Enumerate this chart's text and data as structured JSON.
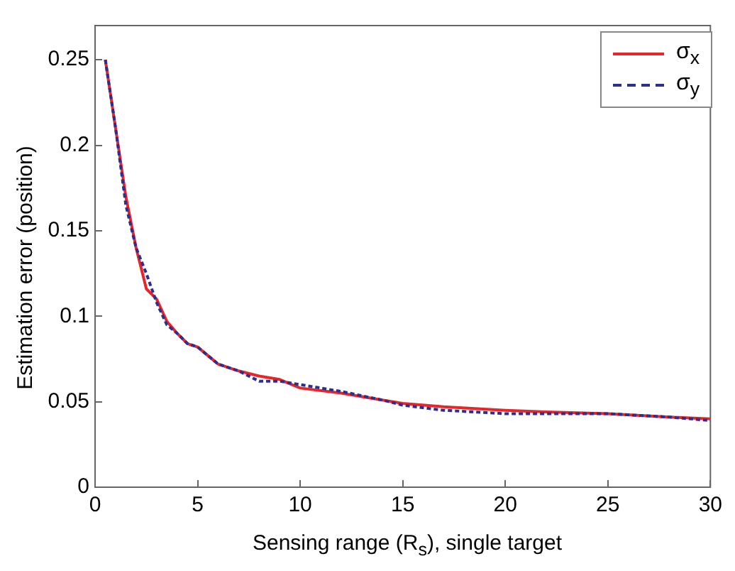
{
  "chart_data": {
    "type": "line",
    "xlabel": "Sensing range (R$_{s}$), single target",
    "ylabel": "Estimation error (position)",
    "xlim": [
      0,
      30
    ],
    "xticks": [
      0,
      5,
      10,
      15,
      20,
      25,
      30
    ],
    "ylim": [
      0,
      0.27
    ],
    "yticks": [
      0,
      0.05,
      0.1,
      0.15,
      0.2,
      0.25
    ],
    "grid": false,
    "legend": "top right",
    "marker": "none",
    "series": [
      {
        "name": "σ$_{x}$",
        "color": "#e8262a",
        "line_style": "solid",
        "x": [
          0.5,
          1,
          1.5,
          2,
          2.5,
          3,
          3.5,
          4,
          4.5,
          5,
          5.5,
          6,
          7,
          8,
          9,
          10,
          12,
          14,
          15,
          17,
          20,
          22,
          25,
          28,
          30
        ],
        "values": [
          0.25,
          0.21,
          0.17,
          0.14,
          0.116,
          0.11,
          0.097,
          0.09,
          0.084,
          0.082,
          0.077,
          0.072,
          0.068,
          0.065,
          0.063,
          0.058,
          0.055,
          0.051,
          0.049,
          0.047,
          0.045,
          0.044,
          0.043,
          0.041,
          0.04
        ]
      },
      {
        "name": "σ$_{y}$",
        "color": "#2b2f8f",
        "line_style": "dashed",
        "x": [
          0.5,
          1,
          1.5,
          2,
          2.5,
          3,
          3.5,
          4,
          4.5,
          5,
          5.5,
          6,
          7,
          8,
          9,
          10,
          12,
          14,
          15,
          17,
          20,
          22,
          25,
          28,
          30
        ],
        "values": [
          0.25,
          0.21,
          0.165,
          0.14,
          0.125,
          0.108,
          0.095,
          0.09,
          0.084,
          0.082,
          0.077,
          0.072,
          0.068,
          0.062,
          0.062,
          0.06,
          0.056,
          0.051,
          0.048,
          0.045,
          0.043,
          0.043,
          0.043,
          0.041,
          0.039
        ]
      }
    ]
  }
}
